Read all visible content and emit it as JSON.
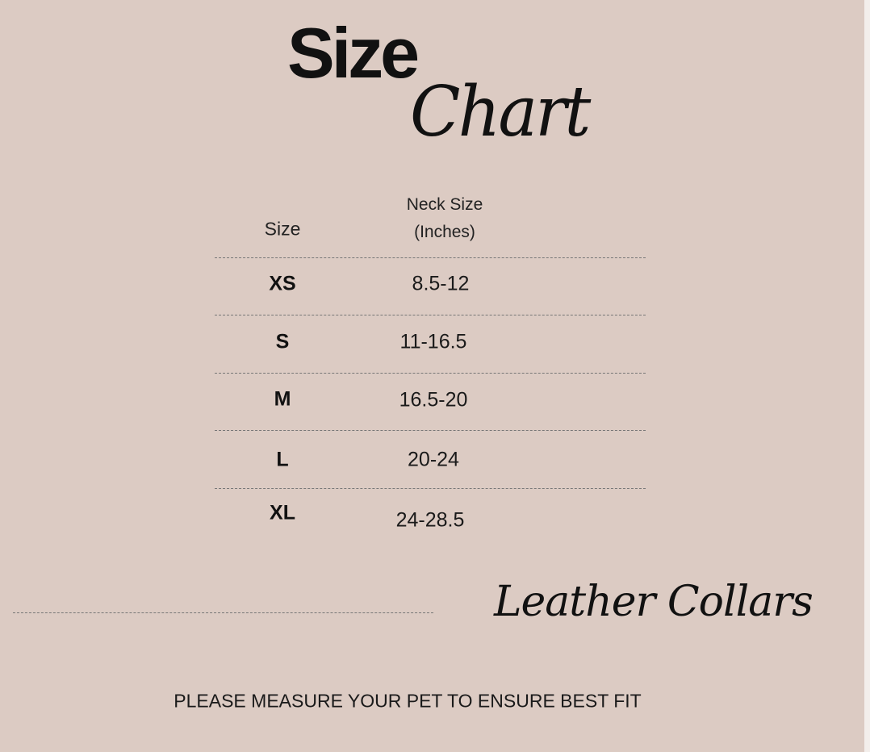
{
  "title": {
    "line1": "Size",
    "line2": "Chart"
  },
  "table": {
    "headers": {
      "size": "Size",
      "neck_line1": "Neck Size",
      "neck_line2": "(Inches)"
    },
    "rows": [
      {
        "size": "XS",
        "neck": "8.5-12"
      },
      {
        "size": "S",
        "neck": "11-16.5"
      },
      {
        "size": "M",
        "neck": "16.5-20"
      },
      {
        "size": "L",
        "neck": "20-24"
      },
      {
        "size": "XL",
        "neck": "24-28.5"
      }
    ]
  },
  "product": "Leather Collars",
  "footer": "PLEASE MEASURE YOUR PET TO ENSURE BEST FIT",
  "colors": {
    "background": "#dccbc3",
    "text": "#111111"
  }
}
